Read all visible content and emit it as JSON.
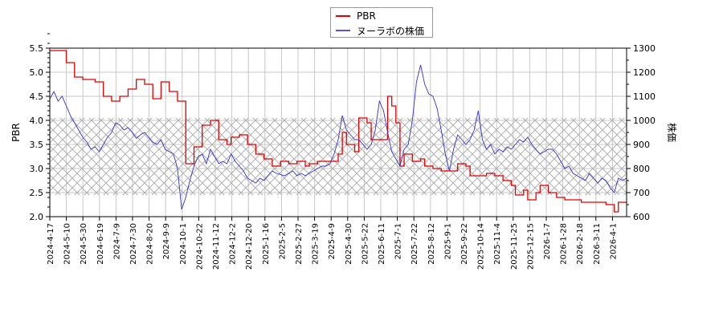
{
  "chart_data": {
    "type": "line",
    "title": "",
    "xlabel": "",
    "ylabel_left": "PBR",
    "ylabel_right": "株価",
    "ylim_left": [
      2.0,
      5.5
    ],
    "ylim_right": [
      600,
      1300
    ],
    "yticks_left": [
      "2.0",
      "2.5",
      "3.0",
      "3.5",
      "4.0",
      "4.5",
      "5.0",
      "5.5"
    ],
    "yticks_right": [
      "600",
      "700",
      "800",
      "900",
      "1000",
      "1100",
      "1200",
      "1300"
    ],
    "x_tick_labels": [
      "2024-4-17",
      "2024-5-10",
      "2024-5-30",
      "2024-6-19",
      "2024-7-9",
      "2024-7-30",
      "2024-8-20",
      "2024-9-9",
      "2024-10-1",
      "2024-10-22",
      "2024-11-12",
      "2024-12-2",
      "2024-12-20",
      "2025-1-16",
      "2025-2-5",
      "2025-2-27",
      "2025-3-19",
      "2025-4-9",
      "2025-4-30",
      "2025-5-22",
      "2025-6-11",
      "2025-7-1",
      "2025-7-22",
      "2025-8-12",
      "2025-9-1",
      "2025-9-22",
      "2025-10-14",
      "2025-11-4",
      "2025-11-25",
      "2025-12-15",
      "2026-1-7",
      "2026-1-28",
      "2026-2-18",
      "2026-3-11",
      "2026-4-1"
    ],
    "grid": true,
    "legend_position": "top-center",
    "shaded_band": {
      "axis": "left",
      "from": 2.45,
      "to": 4.05,
      "pattern": "crosshatch"
    },
    "series": [
      {
        "name": "PBR",
        "axis": "left",
        "color": "#e00000",
        "step": true,
        "points": [
          [
            0,
            5.45
          ],
          [
            3,
            5.45
          ],
          [
            4,
            5.2
          ],
          [
            6,
            4.9
          ],
          [
            8,
            4.85
          ],
          [
            11,
            4.8
          ],
          [
            13,
            4.5
          ],
          [
            15,
            4.4
          ],
          [
            17,
            4.5
          ],
          [
            19,
            4.65
          ],
          [
            21,
            4.85
          ],
          [
            23,
            4.75
          ],
          [
            25,
            4.45
          ],
          [
            27,
            4.8
          ],
          [
            29,
            4.6
          ],
          [
            31,
            4.4
          ],
          [
            33,
            3.1
          ],
          [
            35,
            3.45
          ],
          [
            37,
            3.9
          ],
          [
            39,
            4.0
          ],
          [
            41,
            3.6
          ],
          [
            43,
            3.5
          ],
          [
            44,
            3.65
          ],
          [
            46,
            3.7
          ],
          [
            48,
            3.5
          ],
          [
            50,
            3.3
          ],
          [
            52,
            3.2
          ],
          [
            54,
            3.05
          ],
          [
            56,
            3.15
          ],
          [
            58,
            3.1
          ],
          [
            60,
            3.15
          ],
          [
            62,
            3.05
          ],
          [
            63,
            3.1
          ],
          [
            65,
            3.15
          ],
          [
            67,
            3.15
          ],
          [
            69,
            3.15
          ],
          [
            70,
            3.3
          ],
          [
            71,
            3.75
          ],
          [
            72,
            3.5
          ],
          [
            74,
            3.35
          ],
          [
            75,
            4.05
          ],
          [
            77,
            3.95
          ],
          [
            78,
            3.6
          ],
          [
            80,
            3.6
          ],
          [
            82,
            4.5
          ],
          [
            83,
            4.3
          ],
          [
            84,
            3.95
          ],
          [
            85,
            3.05
          ],
          [
            86,
            3.3
          ],
          [
            88,
            3.15
          ],
          [
            90,
            3.2
          ],
          [
            91,
            3.05
          ],
          [
            93,
            3.0
          ],
          [
            95,
            2.95
          ],
          [
            97,
            2.95
          ],
          [
            99,
            3.1
          ],
          [
            101,
            3.05
          ],
          [
            102,
            2.85
          ],
          [
            104,
            2.85
          ],
          [
            106,
            2.9
          ],
          [
            108,
            2.85
          ],
          [
            110,
            2.75
          ],
          [
            112,
            2.65
          ],
          [
            113,
            2.45
          ],
          [
            115,
            2.55
          ],
          [
            116,
            2.35
          ],
          [
            118,
            2.5
          ],
          [
            119,
            2.65
          ],
          [
            121,
            2.5
          ],
          [
            123,
            2.4
          ],
          [
            125,
            2.35
          ],
          [
            127,
            2.35
          ],
          [
            129,
            2.3
          ],
          [
            131,
            2.3
          ],
          [
            133,
            2.3
          ],
          [
            135,
            2.25
          ],
          [
            137,
            2.1
          ],
          [
            138,
            2.3
          ],
          [
            140,
            2.28
          ]
        ]
      },
      {
        "name": "ヌーラボの株価",
        "axis": "right",
        "color": "#3333cc",
        "step": false,
        "points": [
          [
            0,
            1090
          ],
          [
            1,
            1120
          ],
          [
            2,
            1080
          ],
          [
            3,
            1100
          ],
          [
            4,
            1060
          ],
          [
            5,
            1020
          ],
          [
            6,
            990
          ],
          [
            7,
            960
          ],
          [
            8,
            930
          ],
          [
            9,
            910
          ],
          [
            10,
            880
          ],
          [
            11,
            890
          ],
          [
            12,
            870
          ],
          [
            13,
            900
          ],
          [
            14,
            930
          ],
          [
            15,
            950
          ],
          [
            16,
            990
          ],
          [
            17,
            980
          ],
          [
            18,
            960
          ],
          [
            19,
            970
          ],
          [
            20,
            950
          ],
          [
            21,
            925
          ],
          [
            22,
            940
          ],
          [
            23,
            950
          ],
          [
            24,
            930
          ],
          [
            25,
            910
          ],
          [
            26,
            900
          ],
          [
            27,
            920
          ],
          [
            28,
            880
          ],
          [
            29,
            870
          ],
          [
            30,
            860
          ],
          [
            31,
            800
          ],
          [
            32,
            630
          ],
          [
            33,
            680
          ],
          [
            34,
            750
          ],
          [
            35,
            810
          ],
          [
            36,
            850
          ],
          [
            37,
            860
          ],
          [
            38,
            820
          ],
          [
            39,
            880
          ],
          [
            40,
            850
          ],
          [
            41,
            820
          ],
          [
            42,
            830
          ],
          [
            43,
            820
          ],
          [
            44,
            860
          ],
          [
            45,
            830
          ],
          [
            46,
            810
          ],
          [
            47,
            790
          ],
          [
            48,
            760
          ],
          [
            49,
            750
          ],
          [
            50,
            740
          ],
          [
            51,
            760
          ],
          [
            52,
            750
          ],
          [
            53,
            770
          ],
          [
            54,
            790
          ],
          [
            55,
            780
          ],
          [
            56,
            775
          ],
          [
            57,
            770
          ],
          [
            58,
            780
          ],
          [
            59,
            790
          ],
          [
            60,
            770
          ],
          [
            61,
            780
          ],
          [
            62,
            770
          ],
          [
            63,
            780
          ],
          [
            64,
            790
          ],
          [
            65,
            800
          ],
          [
            66,
            810
          ],
          [
            67,
            810
          ],
          [
            68,
            820
          ],
          [
            69,
            860
          ],
          [
            70,
            920
          ],
          [
            71,
            1020
          ],
          [
            72,
            960
          ],
          [
            73,
            940
          ],
          [
            74,
            920
          ],
          [
            75,
            920
          ],
          [
            76,
            900
          ],
          [
            77,
            880
          ],
          [
            78,
            900
          ],
          [
            79,
            960
          ],
          [
            80,
            1080
          ],
          [
            81,
            1040
          ],
          [
            82,
            950
          ],
          [
            83,
            870
          ],
          [
            84,
            840
          ],
          [
            85,
            810
          ],
          [
            86,
            880
          ],
          [
            87,
            900
          ],
          [
            88,
            1000
          ],
          [
            89,
            1160
          ],
          [
            90,
            1230
          ],
          [
            91,
            1150
          ],
          [
            92,
            1110
          ],
          [
            93,
            1100
          ],
          [
            94,
            1050
          ],
          [
            95,
            960
          ],
          [
            96,
            860
          ],
          [
            97,
            790
          ],
          [
            98,
            880
          ],
          [
            99,
            940
          ],
          [
            100,
            920
          ],
          [
            101,
            900
          ],
          [
            102,
            920
          ],
          [
            103,
            960
          ],
          [
            104,
            1040
          ],
          [
            105,
            920
          ],
          [
            106,
            880
          ],
          [
            107,
            900
          ],
          [
            108,
            860
          ],
          [
            109,
            880
          ],
          [
            110,
            870
          ],
          [
            111,
            890
          ],
          [
            112,
            880
          ],
          [
            113,
            900
          ],
          [
            114,
            920
          ],
          [
            115,
            910
          ],
          [
            116,
            930
          ],
          [
            117,
            900
          ],
          [
            118,
            880
          ],
          [
            119,
            860
          ],
          [
            120,
            870
          ],
          [
            121,
            880
          ],
          [
            122,
            880
          ],
          [
            123,
            860
          ],
          [
            124,
            830
          ],
          [
            125,
            800
          ],
          [
            126,
            810
          ],
          [
            127,
            780
          ],
          [
            128,
            770
          ],
          [
            129,
            760
          ],
          [
            130,
            750
          ],
          [
            131,
            780
          ],
          [
            132,
            760
          ],
          [
            133,
            740
          ],
          [
            134,
            760
          ],
          [
            135,
            750
          ],
          [
            136,
            720
          ],
          [
            137,
            700
          ],
          [
            138,
            760
          ],
          [
            139,
            750
          ],
          [
            140,
            760
          ]
        ]
      }
    ]
  },
  "legend": {
    "items": [
      {
        "label": "PBR",
        "color": "#e00000"
      },
      {
        "label": "ヌーラボの株価",
        "color": "#3333cc"
      }
    ]
  }
}
